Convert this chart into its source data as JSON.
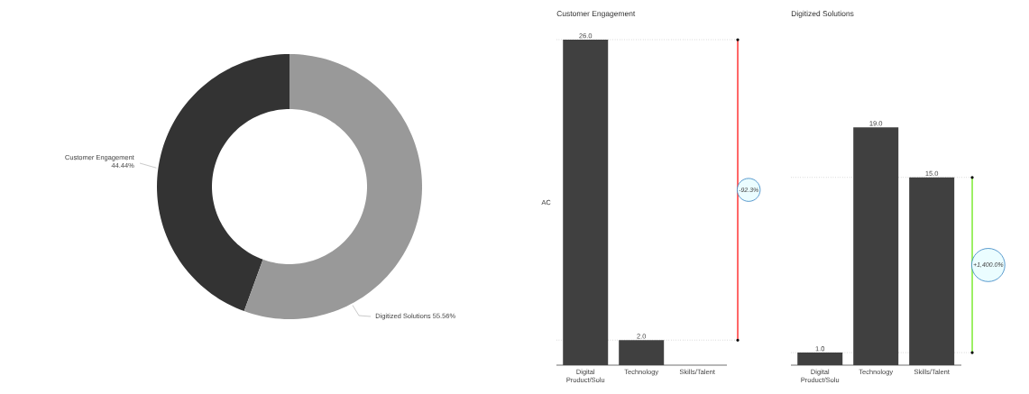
{
  "chart_data": [
    {
      "type": "donut",
      "categories": [
        "Customer Engagement",
        "Digitized Solutions"
      ],
      "values": [
        44.44,
        55.56
      ],
      "colors": [
        "#333333",
        "#999999"
      ],
      "value_labels": [
        "44.44%",
        "55.56%"
      ]
    },
    {
      "type": "bar",
      "title": "Customer Engagement",
      "ylabel": "AC",
      "categories": [
        "Digital Product/Solu",
        "Technology",
        "Skills/Talent"
      ],
      "values": [
        26,
        2,
        null
      ],
      "color": "#404040",
      "value_labels": [
        "26.0",
        "2.0",
        null
      ],
      "annotations": [
        "-92.3%"
      ],
      "ref_lines": [
        {
          "axis": "y",
          "value": 26,
          "line_style": "dotted",
          "color": "#999999"
        },
        {
          "axis": "y",
          "value": 2,
          "line_style": "dotted",
          "color": "#999999"
        }
      ]
    },
    {
      "type": "bar",
      "title": "Digitized Solutions",
      "categories": [
        "Digital Product/Solu",
        "Technology",
        "Skills/Talent"
      ],
      "values": [
        1,
        19,
        15
      ],
      "color": "#404040",
      "value_labels": [
        "1.0",
        "19.0",
        "15.0"
      ],
      "annotations": [
        "+1,400.0%"
      ],
      "ref_lines": [
        {
          "axis": "y",
          "value": 15,
          "line_style": "dotted",
          "color": "#999999"
        },
        {
          "axis": "y",
          "value": 1,
          "line_style": "dotted",
          "color": "#999999"
        }
      ]
    }
  ]
}
